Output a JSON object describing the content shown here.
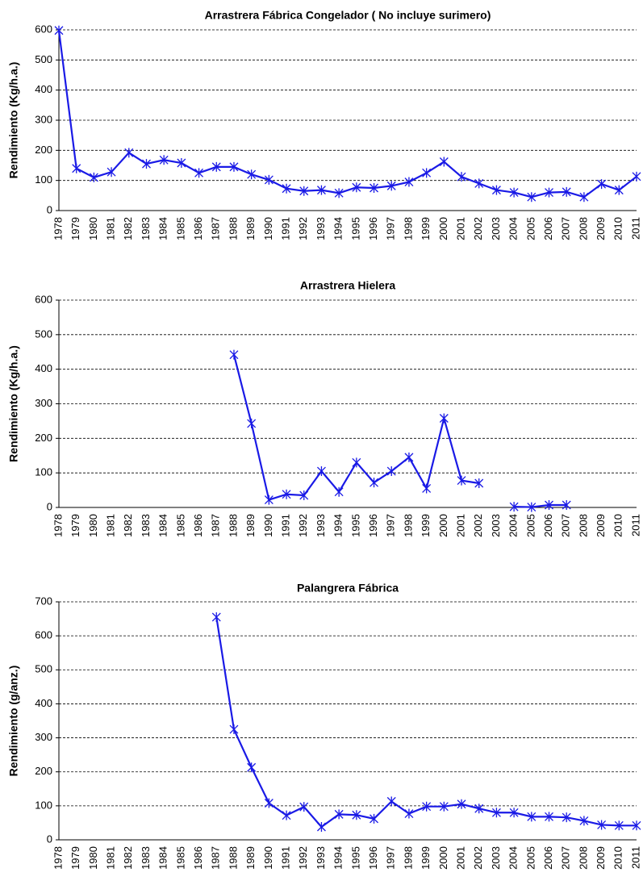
{
  "chart_data": [
    {
      "type": "line",
      "title": "Arrastrera Fábrica Congelador ( No incluye surimero)",
      "y_label": "Rendimiento (Kg/h.a.)",
      "categories": [
        "1978",
        "1979",
        "1980",
        "1981",
        "1982",
        "1983",
        "1984",
        "1985",
        "1986",
        "1987",
        "1988",
        "1989",
        "1990",
        "1991",
        "1992",
        "1993",
        "1994",
        "1995",
        "1996",
        "1997",
        "1998",
        "1999",
        "2000",
        "2001",
        "2002",
        "2003",
        "2004",
        "2005",
        "2006",
        "2007",
        "2008",
        "2009",
        "2010",
        "2011"
      ],
      "values": [
        598,
        140,
        110,
        128,
        192,
        155,
        168,
        158,
        125,
        145,
        145,
        120,
        102,
        73,
        65,
        68,
        58,
        77,
        75,
        82,
        95,
        125,
        162,
        112,
        90,
        68,
        60,
        45,
        60,
        62,
        45,
        88,
        68,
        113
      ],
      "color": "#1a1ae6",
      "ylim": [
        0,
        600
      ],
      "yticks": [
        0,
        100,
        200,
        300,
        400,
        500,
        600
      ],
      "grid": true
    },
    {
      "type": "line",
      "title": "Arrastrera Hielera",
      "y_label": "Rendimiento (Kg/h.a.)",
      "categories": [
        "1978",
        "1979",
        "1980",
        "1981",
        "1982",
        "1983",
        "1984",
        "1985",
        "1986",
        "1987",
        "1988",
        "1989",
        "1990",
        "1991",
        "1992",
        "1993",
        "1994",
        "1995",
        "1996",
        "1997",
        "1998",
        "1999",
        "2000",
        "2001",
        "2002",
        "2003",
        "2004",
        "2005",
        "2006",
        "2007",
        "2008",
        "2009",
        "2010",
        "2011"
      ],
      "values": [
        null,
        null,
        null,
        null,
        null,
        null,
        null,
        null,
        null,
        null,
        442,
        243,
        22,
        38,
        35,
        105,
        45,
        130,
        72,
        105,
        145,
        55,
        258,
        78,
        70,
        null,
        2,
        1,
        7,
        7,
        null,
        null,
        null,
        null
      ],
      "color": "#1a1ae6",
      "ylim": [
        0,
        600
      ],
      "yticks": [
        0,
        100,
        200,
        300,
        400,
        500,
        600
      ],
      "grid": true
    },
    {
      "type": "line",
      "title": "Palangrera Fábrica",
      "y_label": "Rendimiento (g/anz.)",
      "categories": [
        "1978",
        "1979",
        "1980",
        "1981",
        "1982",
        "1983",
        "1984",
        "1985",
        "1986",
        "1987",
        "1988",
        "1989",
        "1990",
        "1991",
        "1992",
        "1993",
        "1994",
        "1995",
        "1996",
        "1997",
        "1998",
        "1999",
        "2000",
        "2001",
        "2002",
        "2003",
        "2004",
        "2005",
        "2006",
        "2007",
        "2008",
        "2009",
        "2010",
        "2011"
      ],
      "values": [
        null,
        null,
        null,
        null,
        null,
        null,
        null,
        null,
        null,
        655,
        325,
        213,
        108,
        72,
        97,
        38,
        75,
        73,
        62,
        113,
        77,
        98,
        98,
        105,
        92,
        80,
        80,
        68,
        68,
        66,
        56,
        44,
        42,
        42
      ],
      "color": "#1a1ae6",
      "ylim": [
        0,
        700
      ],
      "yticks": [
        0,
        100,
        200,
        300,
        400,
        500,
        600,
        700
      ],
      "grid": true
    }
  ]
}
